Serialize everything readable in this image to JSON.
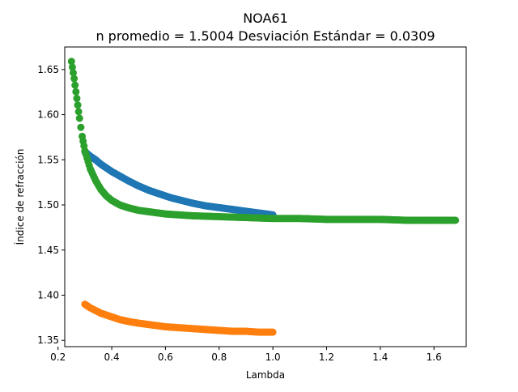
{
  "chart_data": {
    "type": "scatter",
    "title": "NOA61",
    "subtitle": "n promedio = 1.5004  Desviación Estándar = 0.0309",
    "xlabel": "Lambda",
    "ylabel": "Índice de refracción",
    "xlim": [
      0.225,
      1.72
    ],
    "ylim": [
      1.343,
      1.675
    ],
    "xticks": [
      "0.2",
      "0.4",
      "0.6",
      "0.8",
      "1.0",
      "1.2",
      "1.4",
      "1.6"
    ],
    "yticks": [
      "1.35",
      "1.40",
      "1.45",
      "1.50",
      "1.55",
      "1.60",
      "1.65"
    ],
    "grid": false,
    "legend": "none",
    "series": [
      {
        "color": "#1f77b4",
        "x": [
          0.3,
          0.32,
          0.34,
          0.36,
          0.38,
          0.4,
          0.43,
          0.46,
          0.5,
          0.54,
          0.58,
          0.62,
          0.66,
          0.7,
          0.75,
          0.8,
          0.85,
          0.9,
          0.95,
          1.0
        ],
        "y": [
          1.559,
          1.554,
          1.55,
          1.545,
          1.541,
          1.537,
          1.532,
          1.527,
          1.521,
          1.516,
          1.512,
          1.508,
          1.505,
          1.502,
          1.499,
          1.497,
          1.495,
          1.493,
          1.491,
          1.489
        ]
      },
      {
        "color": "#ff7f0e",
        "x": [
          0.3,
          0.32,
          0.34,
          0.36,
          0.38,
          0.4,
          0.43,
          0.46,
          0.5,
          0.55,
          0.6,
          0.65,
          0.7,
          0.75,
          0.8,
          0.85,
          0.9,
          0.95,
          1.0
        ],
        "y": [
          1.39,
          1.386,
          1.383,
          1.38,
          1.378,
          1.376,
          1.373,
          1.371,
          1.369,
          1.367,
          1.365,
          1.364,
          1.363,
          1.362,
          1.361,
          1.36,
          1.36,
          1.359,
          1.359
        ]
      },
      {
        "color": "#2ca02c",
        "x": [
          0.25,
          0.26,
          0.27,
          0.28,
          0.29,
          0.3,
          0.32,
          0.34,
          0.36,
          0.38,
          0.4,
          0.43,
          0.46,
          0.5,
          0.55,
          0.6,
          0.65,
          0.7,
          0.8,
          0.9,
          1.0,
          1.1,
          1.2,
          1.3,
          1.4,
          1.5,
          1.6,
          1.68
        ],
        "y": [
          1.659,
          1.64,
          1.618,
          1.596,
          1.576,
          1.56,
          1.54,
          1.527,
          1.517,
          1.51,
          1.505,
          1.5,
          1.497,
          1.494,
          1.492,
          1.49,
          1.489,
          1.488,
          1.487,
          1.486,
          1.485,
          1.485,
          1.484,
          1.484,
          1.484,
          1.483,
          1.483,
          1.483
        ]
      }
    ]
  }
}
